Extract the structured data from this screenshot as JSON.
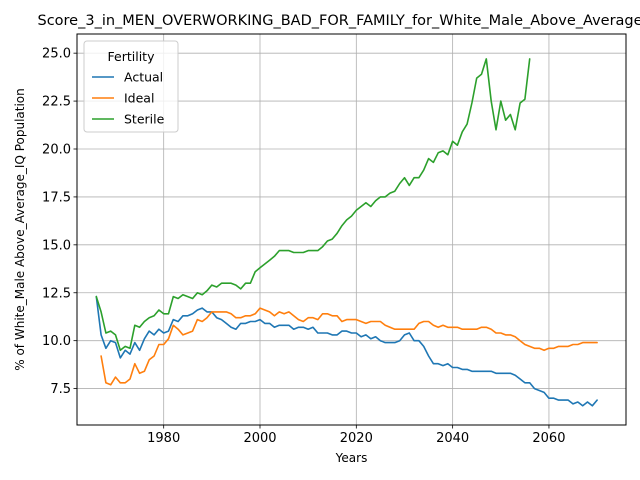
{
  "chart_data": {
    "type": "line",
    "title": "Score_3_in_MEN_OVERWORKING_BAD_FOR_FAMILY_for_White_Male_Above_Average_IQ",
    "xlabel": "Years",
    "ylabel": "% of White_Male Above_Average_IQ Population",
    "xlim": [
      1962,
      2076
    ],
    "ylim": [
      5.6,
      26.0
    ],
    "xticks": [
      1980,
      2000,
      2020,
      2040,
      2060
    ],
    "yticks": [
      7.5,
      10.0,
      12.5,
      15.0,
      17.5,
      20.0,
      22.5,
      25.0
    ],
    "grid": true,
    "legend": {
      "title": "Fertility",
      "placement": "upper-left"
    },
    "series": [
      {
        "name": "Actual",
        "color": "#1f77b4",
        "x": [
          1966,
          1967,
          1968,
          1969,
          1970,
          1971,
          1972,
          1973,
          1974,
          1975,
          1976,
          1977,
          1978,
          1979,
          1980,
          1981,
          1982,
          1983,
          1984,
          1985,
          1986,
          1987,
          1988,
          1989,
          1990,
          1991,
          1992,
          1993,
          1994,
          1995,
          1996,
          1997,
          1998,
          1999,
          2000,
          2001,
          2002,
          2003,
          2004,
          2005,
          2006,
          2007,
          2008,
          2009,
          2010,
          2011,
          2012,
          2013,
          2014,
          2015,
          2016,
          2017,
          2018,
          2019,
          2020,
          2021,
          2022,
          2023,
          2024,
          2025,
          2026,
          2027,
          2028,
          2029,
          2030,
          2031,
          2032,
          2033,
          2034,
          2035,
          2036,
          2037,
          2038,
          2039,
          2040,
          2041,
          2042,
          2043,
          2044,
          2045,
          2046,
          2047,
          2048,
          2049,
          2050,
          2051,
          2052,
          2053,
          2054,
          2055,
          2056,
          2057,
          2058,
          2059,
          2060,
          2061,
          2062,
          2063,
          2064,
          2065,
          2066,
          2067,
          2068,
          2069,
          2070
        ],
        "values": [
          12.3,
          10.3,
          9.6,
          10.0,
          9.9,
          9.1,
          9.5,
          9.3,
          9.9,
          9.5,
          10.1,
          10.5,
          10.3,
          10.6,
          10.4,
          10.5,
          11.1,
          11.0,
          11.3,
          11.3,
          11.4,
          11.6,
          11.7,
          11.5,
          11.5,
          11.2,
          11.1,
          10.9,
          10.7,
          10.6,
          10.9,
          10.9,
          11.0,
          11.0,
          11.1,
          10.9,
          10.9,
          10.7,
          10.8,
          10.8,
          10.8,
          10.6,
          10.7,
          10.7,
          10.6,
          10.7,
          10.4,
          10.4,
          10.4,
          10.3,
          10.3,
          10.5,
          10.5,
          10.4,
          10.4,
          10.2,
          10.3,
          10.1,
          10.2,
          10.0,
          9.9,
          9.9,
          9.9,
          10.0,
          10.3,
          10.4,
          10.0,
          10.0,
          9.7,
          9.2,
          8.8,
          8.8,
          8.7,
          8.8,
          8.6,
          8.6,
          8.5,
          8.5,
          8.4,
          8.4,
          8.4,
          8.4,
          8.4,
          8.3,
          8.3,
          8.3,
          8.3,
          8.2,
          8.0,
          7.8,
          7.8,
          7.5,
          7.4,
          7.3,
          7.0,
          7.0,
          6.9,
          6.9,
          6.9,
          6.7,
          6.8,
          6.6,
          6.8,
          6.6,
          6.9
        ]
      },
      {
        "name": "Ideal",
        "color": "#ff7f0e",
        "x": [
          1967,
          1968,
          1969,
          1970,
          1971,
          1972,
          1973,
          1974,
          1975,
          1976,
          1977,
          1978,
          1979,
          1980,
          1981,
          1982,
          1983,
          1984,
          1985,
          1986,
          1987,
          1988,
          1989,
          1990,
          1991,
          1992,
          1993,
          1994,
          1995,
          1996,
          1997,
          1998,
          1999,
          2000,
          2001,
          2002,
          2003,
          2004,
          2005,
          2006,
          2007,
          2008,
          2009,
          2010,
          2011,
          2012,
          2013,
          2014,
          2015,
          2016,
          2017,
          2018,
          2019,
          2020,
          2021,
          2022,
          2023,
          2024,
          2025,
          2026,
          2027,
          2028,
          2029,
          2030,
          2031,
          2032,
          2033,
          2034,
          2035,
          2036,
          2037,
          2038,
          2039,
          2040,
          2041,
          2042,
          2043,
          2044,
          2045,
          2046,
          2047,
          2048,
          2049,
          2050,
          2051,
          2052,
          2053,
          2054,
          2055,
          2056,
          2057,
          2058,
          2059,
          2060,
          2061,
          2062,
          2063,
          2064,
          2065,
          2066,
          2067,
          2068,
          2069,
          2070
        ],
        "values": [
          9.2,
          7.8,
          7.7,
          8.1,
          7.8,
          7.8,
          8.0,
          8.8,
          8.3,
          8.4,
          9.0,
          9.2,
          9.8,
          9.8,
          10.1,
          10.8,
          10.6,
          10.3,
          10.4,
          10.5,
          11.1,
          11.0,
          11.2,
          11.5,
          11.5,
          11.5,
          11.5,
          11.4,
          11.2,
          11.2,
          11.3,
          11.3,
          11.4,
          11.7,
          11.6,
          11.5,
          11.3,
          11.5,
          11.4,
          11.5,
          11.3,
          11.1,
          11.0,
          11.2,
          11.2,
          11.1,
          11.4,
          11.4,
          11.3,
          11.3,
          11.0,
          11.1,
          11.1,
          11.1,
          11.0,
          10.9,
          11.0,
          11.0,
          11.0,
          10.8,
          10.7,
          10.6,
          10.6,
          10.6,
          10.6,
          10.6,
          10.9,
          11.0,
          11.0,
          10.8,
          10.7,
          10.8,
          10.7,
          10.7,
          10.7,
          10.6,
          10.6,
          10.6,
          10.6,
          10.7,
          10.7,
          10.6,
          10.4,
          10.4,
          10.3,
          10.3,
          10.2,
          10.0,
          9.8,
          9.7,
          9.6,
          9.6,
          9.5,
          9.6,
          9.6,
          9.7,
          9.7,
          9.7,
          9.8,
          9.8,
          9.9,
          9.9,
          9.9,
          9.9
        ]
      },
      {
        "name": "Sterile",
        "color": "#2ca02c",
        "x": [
          1966,
          1967,
          1968,
          1969,
          1970,
          1971,
          1972,
          1973,
          1974,
          1975,
          1976,
          1977,
          1978,
          1979,
          1980,
          1981,
          1982,
          1983,
          1984,
          1985,
          1986,
          1987,
          1988,
          1989,
          1990,
          1991,
          1992,
          1993,
          1994,
          1995,
          1996,
          1997,
          1998,
          1999,
          2000,
          2001,
          2002,
          2003,
          2004,
          2005,
          2006,
          2007,
          2008,
          2009,
          2010,
          2011,
          2012,
          2013,
          2014,
          2015,
          2016,
          2017,
          2018,
          2019,
          2020,
          2021,
          2022,
          2023,
          2024,
          2025,
          2026,
          2027,
          2028,
          2029,
          2030,
          2031,
          2032,
          2033,
          2034,
          2035,
          2036,
          2037,
          2038,
          2039,
          2040,
          2041,
          2042,
          2043,
          2044,
          2045,
          2046,
          2047,
          2048,
          2049,
          2050,
          2051,
          2052,
          2053,
          2054,
          2055,
          2056
        ],
        "values": [
          12.3,
          11.5,
          10.4,
          10.5,
          10.3,
          9.5,
          9.7,
          9.6,
          10.8,
          10.7,
          11.0,
          11.2,
          11.3,
          11.6,
          11.4,
          11.4,
          12.3,
          12.2,
          12.4,
          12.3,
          12.2,
          12.5,
          12.4,
          12.6,
          12.9,
          12.8,
          13.0,
          13.0,
          13.0,
          12.9,
          12.7,
          13.0,
          13.0,
          13.6,
          13.8,
          14.0,
          14.2,
          14.4,
          14.7,
          14.7,
          14.7,
          14.6,
          14.6,
          14.6,
          14.7,
          14.7,
          14.7,
          14.9,
          15.2,
          15.3,
          15.6,
          16.0,
          16.3,
          16.5,
          16.8,
          17.0,
          17.2,
          17.0,
          17.3,
          17.5,
          17.5,
          17.7,
          17.8,
          18.2,
          18.5,
          18.1,
          18.5,
          18.5,
          18.9,
          19.5,
          19.3,
          19.8,
          19.9,
          19.7,
          20.4,
          20.2,
          20.9,
          21.3,
          22.4,
          23.7,
          23.9,
          24.7,
          22.5,
          21.0,
          22.5,
          21.5,
          21.8,
          21.0,
          22.4,
          22.6,
          24.7
        ]
      }
    ]
  }
}
